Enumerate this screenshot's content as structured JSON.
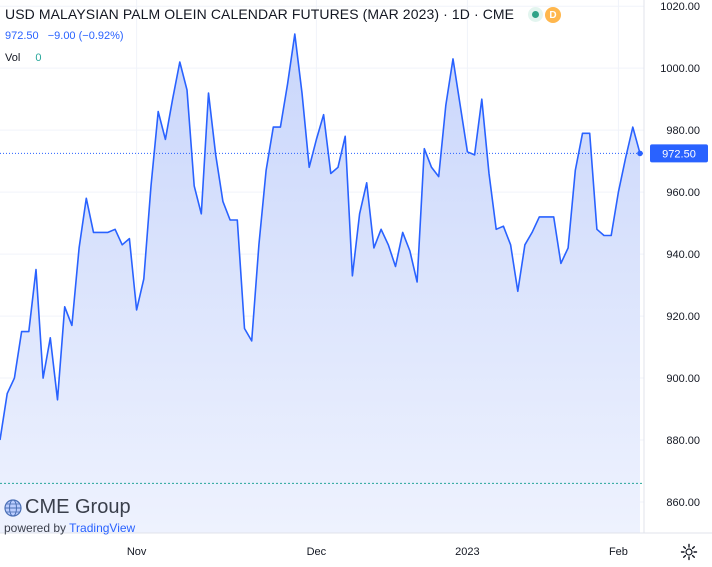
{
  "legend": {
    "title": "USD MALAYSIAN PALM OLEIN CALENDAR FUTURES (MAR 2023) · 1D · CME",
    "last_price": "972.50",
    "change": "−9.00 (−0.92%)",
    "vol_label": "Vol",
    "vol_value": "0",
    "status_letter": "D"
  },
  "branding": {
    "logo_text": "CME Group",
    "powered_by": "powered by",
    "tradingview": "TradingView"
  },
  "colors": {
    "line": "#2962ff",
    "area_top": "#c9d6fb",
    "area_bottom": "#eef2fe",
    "grid": "#f0f3fa",
    "price_tag": "#2962ff",
    "ref_line": "#26a69a"
  },
  "chart_data": {
    "type": "area",
    "title": "USD MALAYSIAN PALM OLEIN CALENDAR FUTURES (MAR 2023) · 1D · CME",
    "xlabel": "",
    "ylabel": "",
    "x_tick_labels": [
      "Nov",
      "Dec",
      "2023",
      "Feb"
    ],
    "y_ticks": [
      860,
      880,
      900,
      920,
      940,
      960,
      980,
      1000,
      1020
    ],
    "ylim": [
      850,
      1022
    ],
    "grid": true,
    "last_value_label": "972.50",
    "reference_level": 866,
    "series": [
      {
        "values": [
          880,
          895,
          900,
          915,
          915,
          935,
          900,
          913,
          893,
          923,
          917,
          942,
          958,
          947,
          947,
          947,
          948,
          943,
          945,
          922,
          932,
          962,
          986,
          977,
          990,
          1002,
          993,
          962,
          953,
          992,
          972,
          957,
          951,
          951,
          916,
          912,
          943,
          967,
          981,
          981,
          995,
          1011,
          992,
          968,
          977,
          985,
          966,
          968,
          978,
          933,
          953,
          963,
          942,
          948,
          943,
          936,
          947,
          941,
          931,
          974,
          968,
          965,
          988,
          1003,
          988,
          973,
          972,
          990,
          966,
          948,
          949,
          943,
          928,
          943,
          947,
          952,
          952,
          952,
          937,
          942,
          967,
          979,
          979,
          948,
          946,
          946,
          960,
          971,
          981,
          972.5
        ]
      }
    ]
  }
}
